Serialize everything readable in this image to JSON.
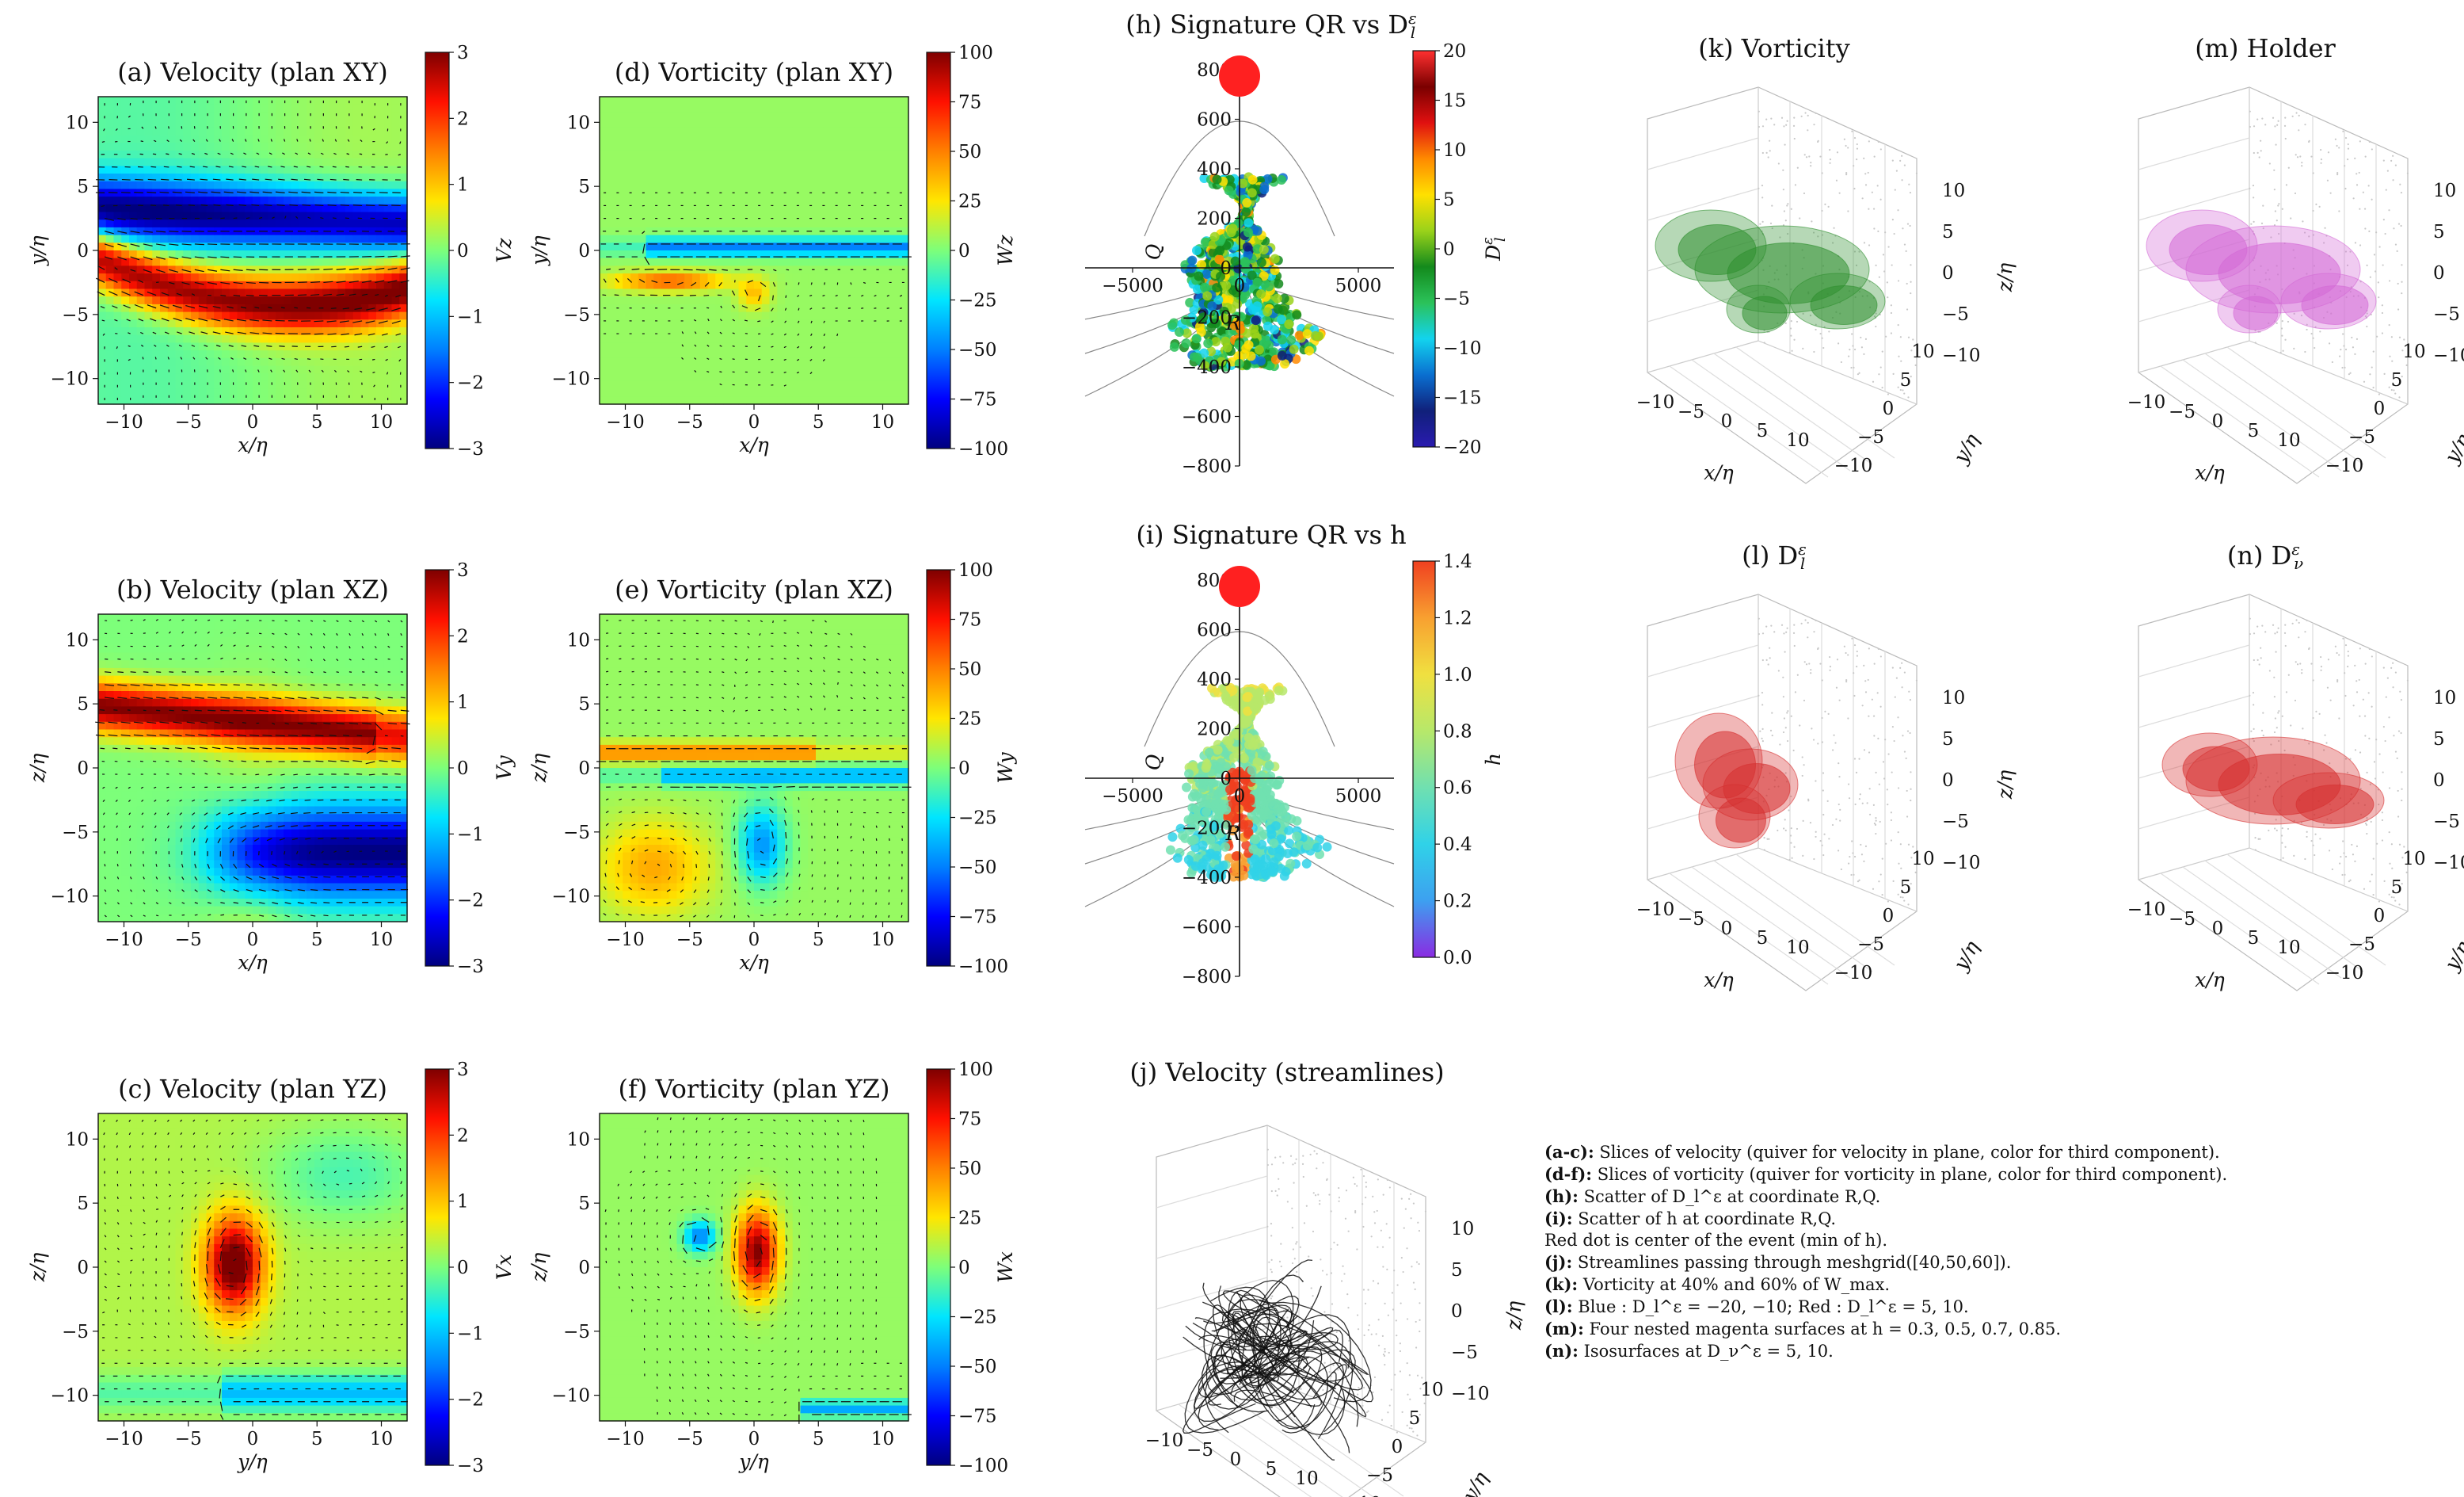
{
  "colors": {
    "jet": [
      "#00007f",
      "#0000ff",
      "#0080ff",
      "#00e5ff",
      "#7dff7a",
      "#ffe600",
      "#ff8000",
      "#ff1000",
      "#7f0000"
    ],
    "d_cmap": [
      "#2a1bb0",
      "#10207a",
      "#0a6fd0",
      "#12d3ee",
      "#2bc25a",
      "#138a1c",
      "#9ad21a",
      "#ffe000",
      "#ff8a00",
      "#e01010",
      "#7a0000",
      "#ff3030"
    ],
    "h_cmap": [
      "#8a2be2",
      "#3da0f0",
      "#30d2e8",
      "#70e0b0",
      "#b7e86a",
      "#f0e040",
      "#f8a030",
      "#f04020"
    ],
    "red_dot": "#ff2020",
    "iso_green": "#2f8f2f",
    "iso_magenta": "#d46ad6",
    "iso_red": "#d63030"
  },
  "slice_ticks": [
    "-10",
    "-5",
    "0",
    "5",
    "10"
  ],
  "slice_panels": [
    {
      "id": "a",
      "title": "(a)  Velocity (plan XY)",
      "xlabel": "x/η",
      "ylabel": "y/η",
      "cbar_label": "Vz",
      "cbar_ticks": [
        "3",
        "2",
        "1",
        "0",
        "−1",
        "−2",
        "−3"
      ],
      "field": "a"
    },
    {
      "id": "b",
      "title": "(b)  Velocity (plan XZ)",
      "xlabel": "x/η",
      "ylabel": "z/η",
      "cbar_label": "Vy",
      "cbar_ticks": [
        "3",
        "2",
        "1",
        "0",
        "−1",
        "−2",
        "−3"
      ],
      "field": "b"
    },
    {
      "id": "c",
      "title": "(c)  Velocity (plan YZ)",
      "xlabel": "y/η",
      "ylabel": "z/η",
      "cbar_label": "Vx",
      "cbar_ticks": [
        "3",
        "2",
        "1",
        "0",
        "−1",
        "−2",
        "−3"
      ],
      "field": "c"
    },
    {
      "id": "d",
      "title": "(d)  Vorticity (plan XY)",
      "xlabel": "x/η",
      "ylabel": "y/η",
      "cbar_label": "Wz",
      "cbar_ticks": [
        "100",
        "75",
        "50",
        "25",
        "0",
        "−25",
        "−50",
        "−75",
        "−100"
      ],
      "field": "d"
    },
    {
      "id": "e",
      "title": "(e)  Vorticity (plan XZ)",
      "xlabel": "x/η",
      "ylabel": "z/η",
      "cbar_label": "Wy",
      "cbar_ticks": [
        "100",
        "75",
        "50",
        "25",
        "0",
        "−25",
        "−50",
        "−75",
        "−100"
      ],
      "field": "e"
    },
    {
      "id": "f",
      "title": "(f)  Vorticity (plan YZ)",
      "xlabel": "y/η",
      "ylabel": "z/η",
      "cbar_label": "Wx",
      "cbar_ticks": [
        "100",
        "75",
        "50",
        "25",
        "0",
        "−25",
        "−50",
        "−75",
        "−100"
      ],
      "field": "f"
    }
  ],
  "qr_panels": [
    {
      "id": "h",
      "title": "(h)  Signature QR vs D",
      "title_sub": "l",
      "title_sup": "ε",
      "cbar_label": "D",
      "cbar_sub": "l",
      "cbar_sup": "ε",
      "cbar_ticks": [
        "20",
        "15",
        "10",
        "5",
        "0",
        "−5",
        "−10",
        "−15",
        "−20"
      ],
      "qlabel": "Q",
      "rlabel": "R",
      "yticks": [
        "800",
        "600",
        "400",
        "200",
        "0",
        "−200",
        "−400",
        "−600",
        "−800"
      ],
      "xticks": [
        "−5000",
        "0",
        "5000"
      ],
      "cmap": "d_cmap"
    },
    {
      "id": "i",
      "title": "(i)  Signature QR vs h",
      "title_sub": "",
      "title_sup": "",
      "cbar_label": "h",
      "cbar_sub": "",
      "cbar_sup": "",
      "cbar_ticks": [
        "1.4",
        "1.2",
        "1.0",
        "0.8",
        "0.6",
        "0.4",
        "0.2",
        "0.0"
      ],
      "qlabel": "Q",
      "rlabel": "R",
      "yticks": [
        "800",
        "600",
        "400",
        "200",
        "0",
        "−200",
        "−400",
        "−600",
        "−800"
      ],
      "xticks": [
        "−5000",
        "0",
        "5000"
      ],
      "cmap": "h_cmap"
    }
  ],
  "panels_3d": [
    {
      "id": "j",
      "title": "(j)  Velocity (streamlines)",
      "kind": "streamlines"
    },
    {
      "id": "k",
      "title": "(k)  Vorticity",
      "kind": "iso_green"
    },
    {
      "id": "l",
      "title": "(l)  D",
      "title_sub": "l",
      "title_sup": "ε",
      "kind": "iso_red_small"
    },
    {
      "id": "m",
      "title": "(m)  Holder",
      "kind": "iso_magenta"
    },
    {
      "id": "n",
      "title": "(n)  D",
      "title_sub": "ν",
      "title_sup": "ε",
      "kind": "iso_red_big"
    }
  ],
  "axis3d": {
    "xticks": [
      "−10",
      "−5",
      "0",
      "5",
      "10"
    ],
    "yticks": [
      "−10",
      "−5",
      "0",
      "5",
      "10"
    ],
    "zticks": [
      "10",
      "5",
      "0",
      "−5",
      "−10"
    ],
    "xlabel": "x/η",
    "ylabel": "y/η",
    "zlabel": "z/η"
  },
  "caption": [
    {
      "b": "(a-c):",
      "t": " Slices of velocity (quiver for velocity in plane, color for third component)."
    },
    {
      "b": "(d-f):",
      "t": " Slices of vorticity (quiver for vorticity in plane, color for third component)."
    },
    {
      "b": "(h):",
      "t": " Scatter of D_l^ε at coordinate R,Q."
    },
    {
      "b": "(i):",
      "t": " Scatter of h at coordinate R,Q."
    },
    {
      "b": "",
      "t": "Red dot is center of the event (min of h)."
    },
    {
      "b": "(j):",
      "t": " Streamlines passing through meshgrid([40,50,60])."
    },
    {
      "b": "(k):",
      "t": " Vorticity at 40% and 60% of W_max."
    },
    {
      "b": "(l):",
      "t": " Blue : D_l^ε = −20, −10; Red : D_l^ε = 5, 10."
    },
    {
      "b": "(m):",
      "t": " Four nested magenta surfaces at h = 0.3, 0.5, 0.7, 0.85."
    },
    {
      "b": "(n):",
      "t": " Isosurfaces at D_ν^ε = 5, 10."
    }
  ]
}
